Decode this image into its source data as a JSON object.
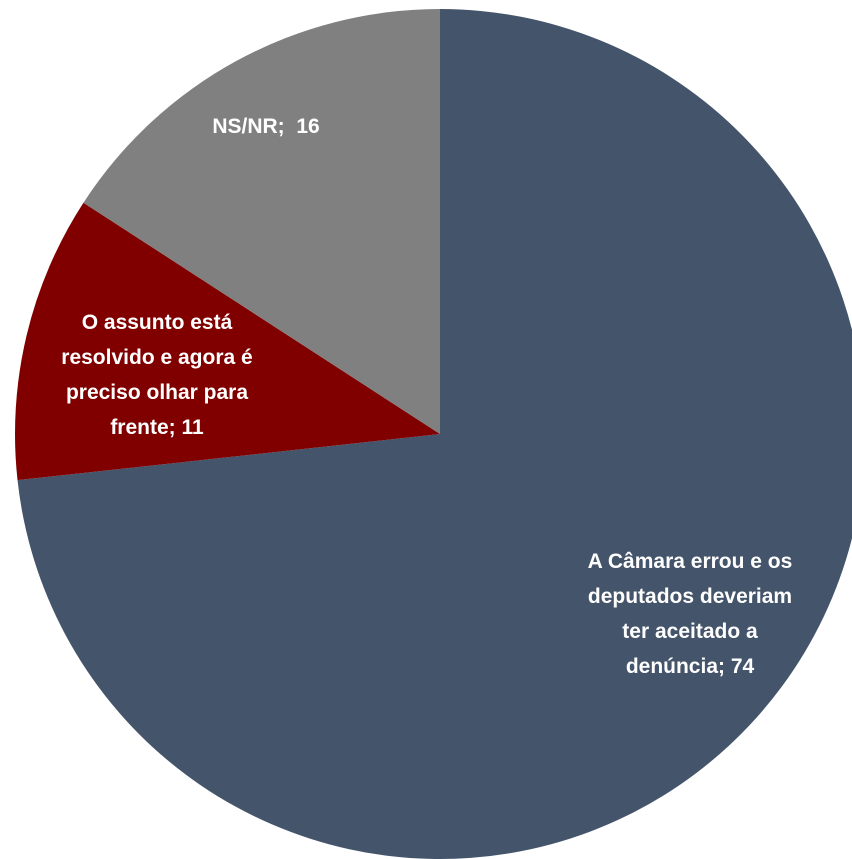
{
  "chart_data": {
    "type": "pie",
    "slices": [
      {
        "label": "A Câmara errou e os deputados deveriam ter aceitado a denúncia",
        "value": 74,
        "color": "#44546a"
      },
      {
        "label": "O assunto está resolvido e agora é preciso olhar para frente",
        "value": 11,
        "color": "#800000"
      },
      {
        "label": "NS/NR",
        "value": 16,
        "color": "#808080"
      }
    ],
    "data_labels": [
      {
        "lines": [
          "A Câmara errou e os",
          "deputados deveriam",
          "ter aceitado a",
          "denúncia; 74"
        ]
      },
      {
        "lines": [
          "O assunto está",
          "resolvido e agora é",
          "preciso olhar para",
          "frente; 11"
        ]
      },
      {
        "lines": [
          "NS/NR;  16"
        ]
      }
    ]
  }
}
